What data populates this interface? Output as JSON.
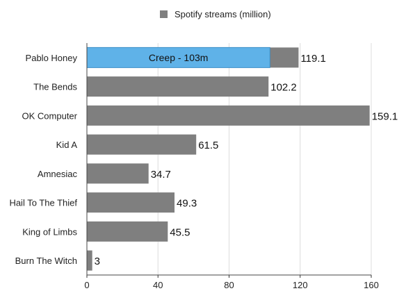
{
  "chart_data": {
    "type": "bar",
    "orientation": "horizontal",
    "categories": [
      "Pablo Honey",
      "The Bends",
      "OK Computer",
      "Kid A",
      "Amnesiac",
      "Hail To The Thief",
      "King of Limbs",
      "Burn The Witch"
    ],
    "series": [
      {
        "name": "Spotify streams (million)",
        "values": [
          119.1,
          102.2,
          159.1,
          61.5,
          34.7,
          49.3,
          45.5,
          3
        ],
        "color": "#7f7f7f"
      }
    ],
    "highlight": {
      "category": "Pablo Honey",
      "value": 103,
      "label": "Creep - 103m",
      "color": "#5fb2e8"
    },
    "data_labels": [
      "119.1",
      "102.2",
      "159.1",
      "61.5",
      "34.7",
      "49.3",
      "45.5",
      "3"
    ],
    "xlim": [
      0,
      160
    ],
    "xticks": [
      0,
      40,
      80,
      120,
      160
    ],
    "grid": "vertical",
    "legend_position": "top-center",
    "title": "",
    "xlabel": "",
    "ylabel": ""
  }
}
